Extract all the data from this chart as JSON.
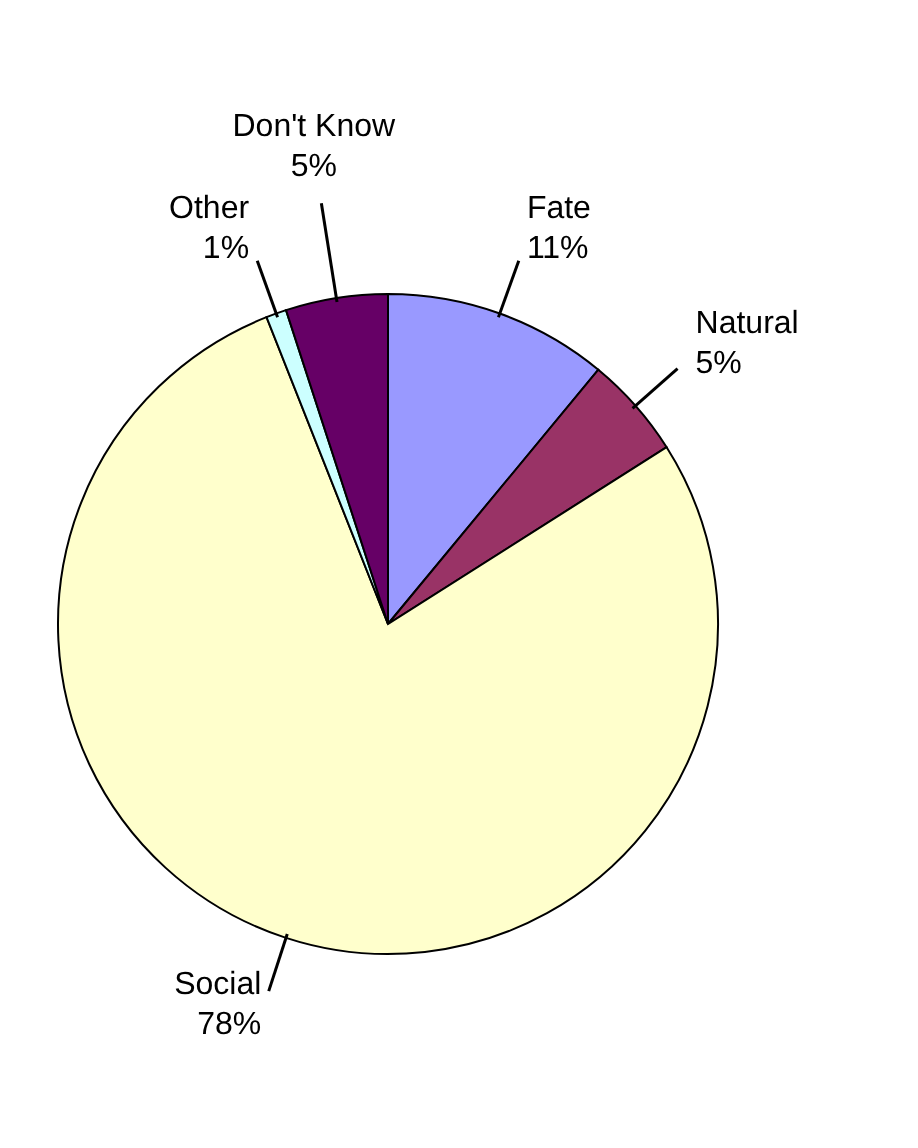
{
  "chart_data": {
    "type": "pie",
    "categories": [
      "Fate",
      "Natural",
      "Social",
      "Other",
      "Don't Know"
    ],
    "values": [
      11,
      5,
      78,
      1,
      5
    ],
    "value_labels": [
      "11%",
      "5%",
      "78%",
      "1%",
      "5%"
    ],
    "colors": [
      "#9999ff",
      "#993366",
      "#ffffcc",
      "#ccffff",
      "#660066"
    ]
  }
}
